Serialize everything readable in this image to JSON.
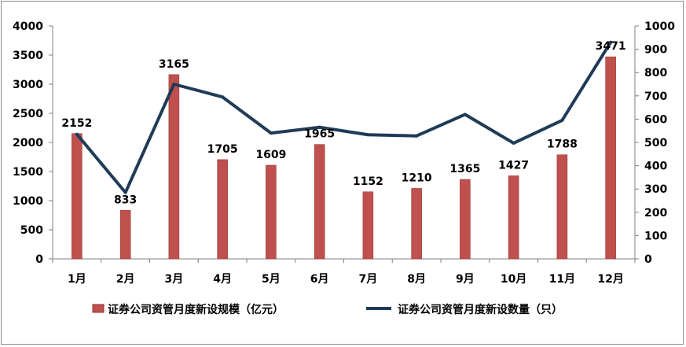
{
  "chart_data": {
    "type": "bar",
    "categories": [
      "1月",
      "2月",
      "3月",
      "4月",
      "5月",
      "6月",
      "7月",
      "8月",
      "9月",
      "10月",
      "11月",
      "12月"
    ],
    "series": [
      {
        "name": "证券公司资管月度新设规模（亿元）",
        "type": "bar",
        "axis": "left",
        "values": [
          2152,
          833,
          3165,
          1705,
          1609,
          1965,
          1152,
          1210,
          1365,
          1427,
          1788,
          3471
        ]
      },
      {
        "name": "证券公司资管月度新设数量（只）",
        "type": "line",
        "axis": "right",
        "values": [
          535,
          285,
          750,
          695,
          540,
          565,
          533,
          528,
          620,
          497,
          595,
          930
        ]
      }
    ],
    "ylim_left": [
      0,
      4000
    ],
    "ylim_right": [
      0,
      1000
    ],
    "yticks_left": [
      "0",
      "500",
      "1000",
      "1500",
      "2000",
      "2500",
      "3000",
      "3500",
      "4000"
    ],
    "yticks_right": [
      "0",
      "100",
      "200",
      "300",
      "400",
      "500",
      "600",
      "700",
      "800",
      "900",
      "1000"
    ],
    "bar_color": "#c0504d",
    "line_color": "#1f3b57",
    "legend_placement": "bottom",
    "grid": false
  }
}
